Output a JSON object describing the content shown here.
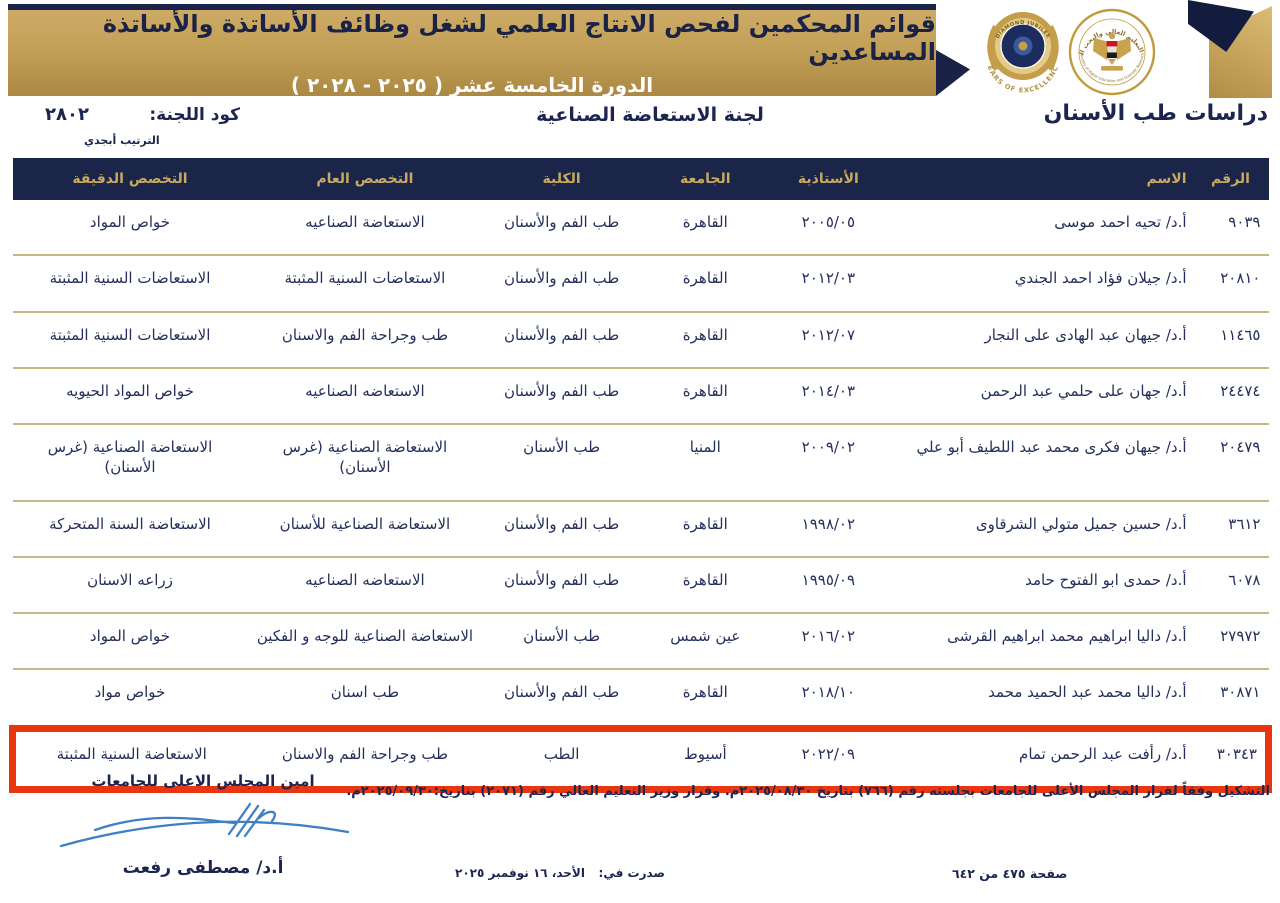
{
  "colors": {
    "navy": "#1b2449",
    "gold": "#c2a057",
    "header_text_gold": "#c9a95f",
    "row_separator": "#c7b685",
    "highlight_red": "#ea3511",
    "signature_blue": "#3f7fc4"
  },
  "banner": {
    "title_line1": "قوائم المحكمين لفحص الانتاج العلمي لشغل وظائف الأساتذة والأساتذة المساعدين",
    "title_line2": "الدورة الخامسة عشر ( ٢٠٢٥ - ٢٠٢٨ )"
  },
  "logos": {
    "seal_top_text": "DIAMOND JUBILEE",
    "seal_bottom_text": "YEARS OF EXCELLENCE",
    "ministry_arabic": "وزارة التعليم العالي والبحث العلمي",
    "ministry_english": "Ministry of Higher Education and Scientific Research"
  },
  "section": {
    "study_area": "دراسات طب الأسنان",
    "committee": "لجنة الاستعاضة الصناعية",
    "code_label": "كود اللجنة:",
    "code_value": "٢٨٠٢",
    "sort_note": "الترتيب أبجدي"
  },
  "table": {
    "headers": [
      "الرقم",
      "الاسم",
      "الأستاذية",
      "الجامعة",
      "الكلية",
      "التخصص العام",
      "التخصص الدقيقة"
    ],
    "rows": [
      {
        "id": "٩٠٣٩",
        "name": "أ.د/ تحيه احمد موسى",
        "prof_date": "٢٠٠٥/٠٥",
        "university": "القاهرة",
        "college": "طب الفم والأسنان",
        "general_specialty": "الاستعاضة الصناعيه",
        "specific_specialty": "خواص المواد",
        "highlighted": false
      },
      {
        "id": "٢٠٨١٠",
        "name": "أ.د/ جيلان فؤاد احمد الجندي",
        "prof_date": "٢٠١٢/٠٣",
        "university": "القاهرة",
        "college": "طب الفم والأسنان",
        "general_specialty": "الاستعاضات السنية المثبتة",
        "specific_specialty": "الاستعاضات السنية المثبتة",
        "highlighted": false
      },
      {
        "id": "١١٤٦٥",
        "name": "أ.د/ جيهان عبد الهادى على النجار",
        "prof_date": "٢٠١٢/٠٧",
        "university": "القاهرة",
        "college": "طب الفم والأسنان",
        "general_specialty": "طب وجراحة الفم والاسنان",
        "specific_specialty": "الاستعاضات السنية المثبتة",
        "highlighted": false
      },
      {
        "id": "٢٤٤٧٤",
        "name": "أ.د/ جهان على حلمي عبد الرحمن",
        "prof_date": "٢٠١٤/٠٣",
        "university": "القاهرة",
        "college": "طب الفم والأسنان",
        "general_specialty": "الاستعاضه الصناعيه",
        "specific_specialty": "خواص المواد الحيويه",
        "highlighted": false
      },
      {
        "id": "٢٠٤٧٩",
        "name": "أ.د/ جيهان فكرى محمد عبد اللطيف أبو علي",
        "prof_date": "٢٠٠٩/٠٢",
        "university": "المنيا",
        "college": "طب الأسنان",
        "general_specialty": "الاستعاضة الصناعية (غرس الأسنان)",
        "specific_specialty": "الاستعاضة الصناعية (غرس الأسنان)",
        "highlighted": false
      },
      {
        "id": "٣٦١٢",
        "name": "أ.د/ حسين جميل متولي الشرقاوى",
        "prof_date": "١٩٩٨/٠٢",
        "university": "القاهرة",
        "college": "طب الفم والأسنان",
        "general_specialty": "الاستعاضة الصناعية للأسنان",
        "specific_specialty": "الاستعاضة السنة المتحركة",
        "highlighted": false
      },
      {
        "id": "٦٠٧٨",
        "name": "أ.د/ حمدى ابو الفتوح حامد",
        "prof_date": "١٩٩٥/٠٩",
        "university": "القاهرة",
        "college": "طب الفم والأسنان",
        "general_specialty": "الاستعاضه الصناعيه",
        "specific_specialty": "زراعه الاسنان",
        "highlighted": false
      },
      {
        "id": "٢٧٩٧٢",
        "name": "أ.د/ داليا ابراهيم محمد ابراهيم القرشى",
        "prof_date": "٢٠١٦/٠٢",
        "university": "عين شمس",
        "college": "طب الأسنان",
        "general_specialty": "الاستعاضة الصناعية للوجه و الفكين",
        "specific_specialty": "خواص المواد",
        "highlighted": false
      },
      {
        "id": "٣٠٨٧١",
        "name": "أ.د/ داليا محمد عبد الحميد محمد",
        "prof_date": "٢٠١٨/١٠",
        "university": "القاهرة",
        "college": "طب الفم والأسنان",
        "general_specialty": "طب اسنان",
        "specific_specialty": "خواص مواد",
        "highlighted": false
      },
      {
        "id": "٣٠٣٤٣",
        "name": "أ.د/ رأفت عبد الرحمن تمام",
        "prof_date": "٢٠٢٢/٠٩",
        "university": "أسيوط",
        "college": "الطب",
        "general_specialty": "طب وجراحة الفم والاسنان",
        "specific_specialty": "الاستعاضة السنية المثبتة",
        "highlighted": true
      }
    ]
  },
  "footer": {
    "formation_note": "التشكيل وفقاً لقرار المجلس الأعلى للجامعات بجلسته رقم (٧٦٦) بتاريخ ٢٠٢٥/٠٨/٣٠م. وقرار وزير التعليم العالي رقم (٢٠٧١) بتاريخ:٢٠٢٥/٠٩/٣٠م.",
    "secretary_title": "امين المجلس الاعلى للجامعات",
    "secretary_name": "أ.د/ مصطفى رفعت",
    "issued_label": "صدرت في:",
    "issued_date": "الأحد، ١٦ نوفمبر ٢٠٢٥",
    "page_info": "صفحة ٤٧٥ من ٦٤٢"
  }
}
